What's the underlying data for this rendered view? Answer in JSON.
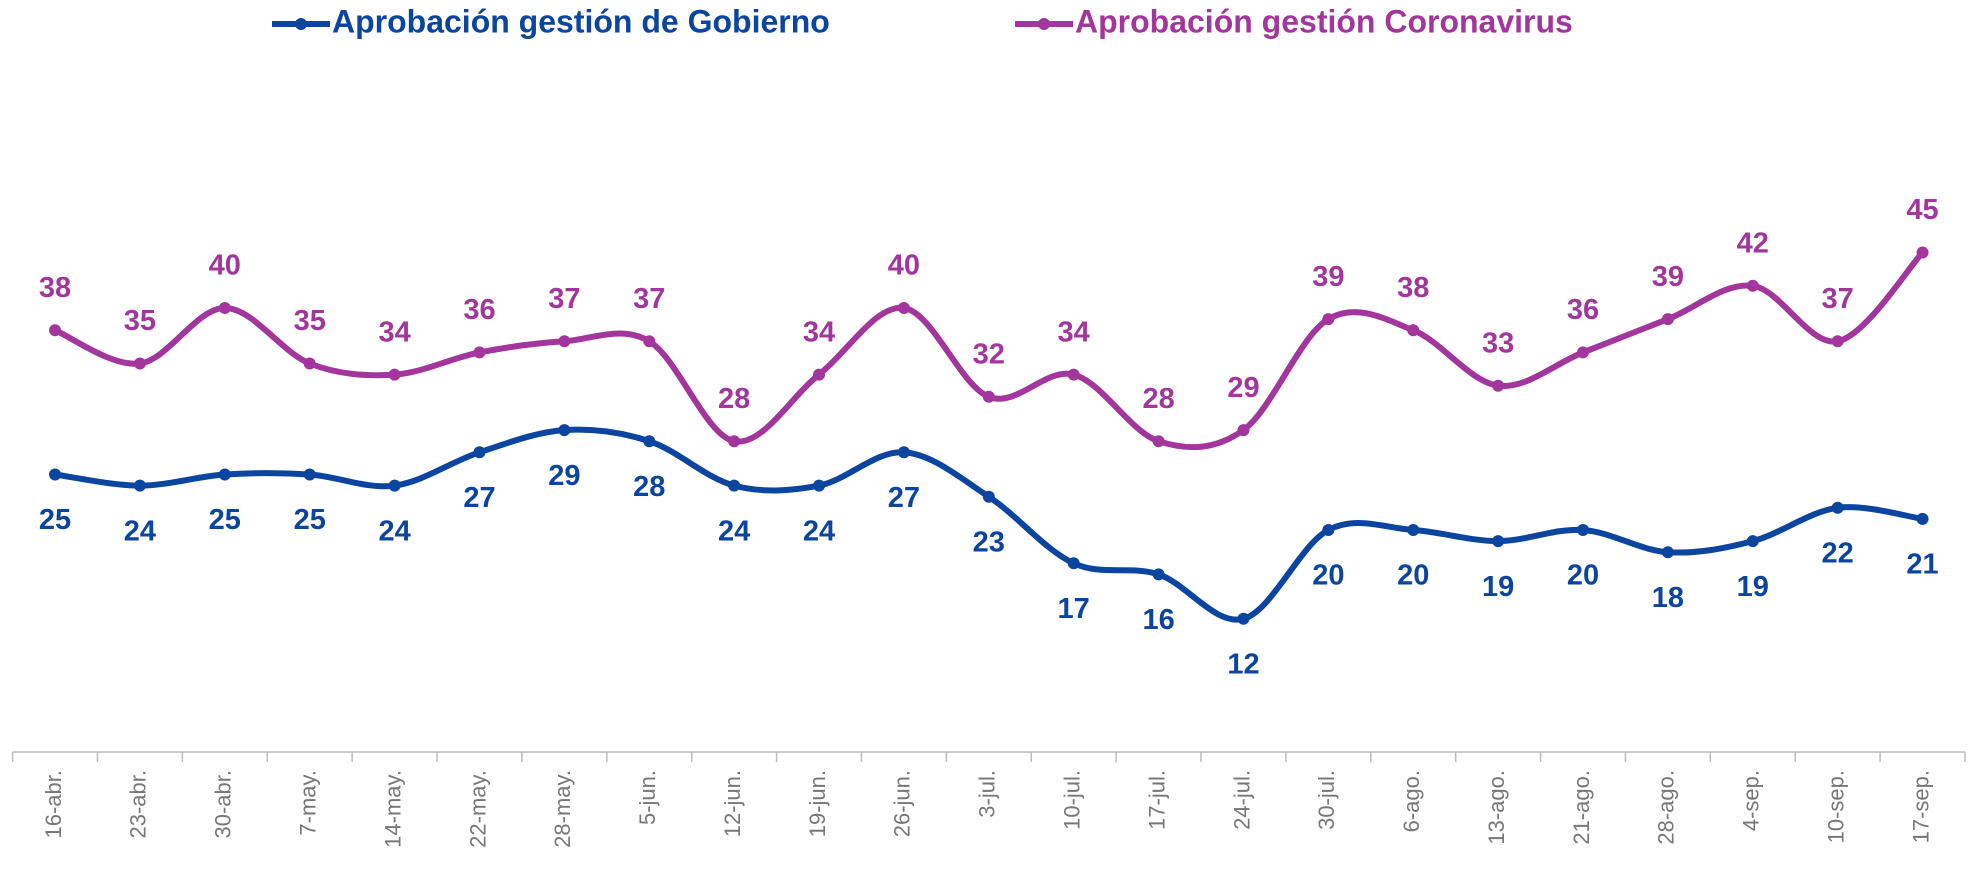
{
  "chart_data": {
    "type": "line",
    "categories": [
      "16-abr.",
      "23-abr.",
      "30-abr.",
      "7-may.",
      "14-may.",
      "22-may.",
      "28-may.",
      "5-jun.",
      "12-jun.",
      "19-jun.",
      "26-jun.",
      "3-jul.",
      "10-jul.",
      "17-jul.",
      "24-jul.",
      "30-jul.",
      "6-ago.",
      "13-ago.",
      "21-ago.",
      "28-ago.",
      "4-sep.",
      "10-sep.",
      "17-sep."
    ],
    "series": [
      {
        "name": "Aprobación gestión de Gobierno",
        "color": "#0b45a0",
        "values": [
          25,
          24,
          25,
          25,
          24,
          27,
          29,
          28,
          24,
          24,
          27,
          23,
          17,
          16,
          12,
          20,
          20,
          19,
          20,
          18,
          19,
          22,
          21
        ]
      },
      {
        "name": "Aprobación gestión Coronavirus",
        "color": "#a3369d",
        "values": [
          38,
          35,
          40,
          35,
          34,
          36,
          37,
          37,
          28,
          34,
          40,
          32,
          34,
          28,
          29,
          39,
          38,
          33,
          36,
          39,
          42,
          37,
          45
        ]
      }
    ],
    "ylim": [
      0,
      68
    ],
    "legend": "top"
  }
}
